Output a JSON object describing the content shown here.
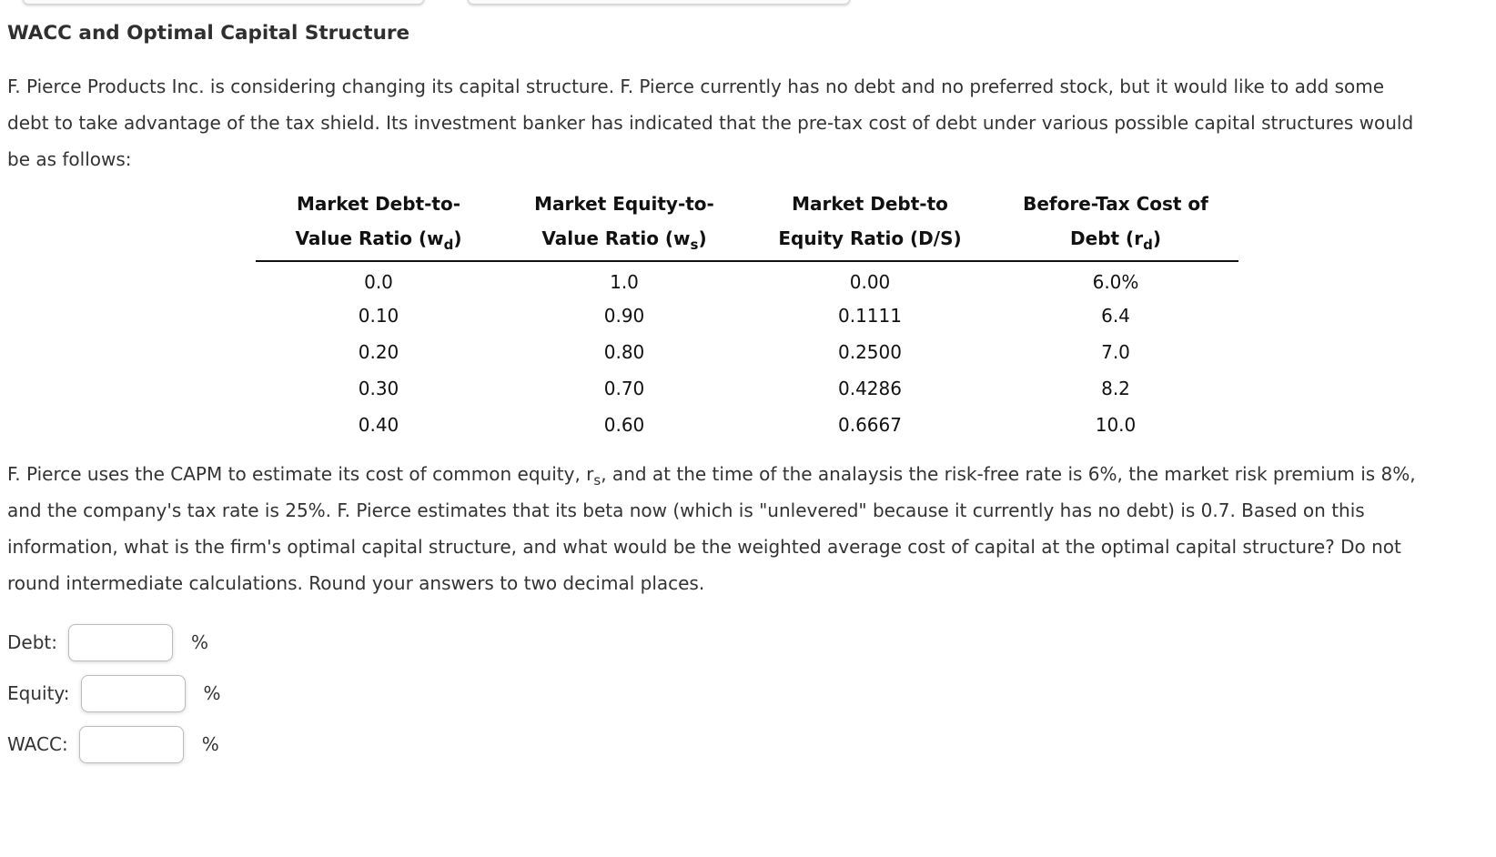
{
  "title": "WACC and Optimal Capital Structure",
  "intro_paragraph": "F. Pierce Products Inc. is considering changing its capital structure. F. Pierce currently has no debt and no preferred stock, but it would like to add some debt to take advantage of the tax shield. Its investment banker has indicated that the pre-tax cost of debt under various possible capital structures would be as follows:",
  "table": {
    "headers": [
      {
        "line1": "Market Debt-to-",
        "line2_pre": "Value Ratio (w",
        "line2_sub": "d",
        "line2_post": ")"
      },
      {
        "line1": "Market Equity-to-",
        "line2_pre": "Value Ratio (w",
        "line2_sub": "s",
        "line2_post": ")"
      },
      {
        "line1": "Market Debt-to",
        "line2_pre": "Equity Ratio (D/S)",
        "line2_sub": "",
        "line2_post": ""
      },
      {
        "line1": "Before-Tax Cost of",
        "line2_pre": "Debt (r",
        "line2_sub": "d",
        "line2_post": ")"
      }
    ],
    "rows": [
      [
        "0.0",
        "1.0",
        "0.00",
        "6.0%"
      ],
      [
        "0.10",
        "0.90",
        "0.1111",
        "6.4"
      ],
      [
        "0.20",
        "0.80",
        "0.2500",
        "7.0"
      ],
      [
        "0.30",
        "0.70",
        "0.4286",
        "8.2"
      ],
      [
        "0.40",
        "0.60",
        "0.6667",
        "10.0"
      ]
    ]
  },
  "question_paragraph": {
    "part1": "F. Pierce uses the CAPM to estimate its cost of common equity, r",
    "sub": "s",
    "part2": ", and at the time of the analaysis the risk-free rate is 6%, the market risk premium is 8%, and the company's tax rate is 25%. F. Pierce estimates that its beta now (which is \"unlevered\" because it currently has no debt) is 0.7. Based on this information, what is the firm's optimal capital structure, and what would be the weighted average cost of capital at the optimal capital structure? Do not round intermediate calculations. Round your answers to two decimal places."
  },
  "answers": [
    {
      "label": "Debt:",
      "value": "",
      "suffix": "%"
    },
    {
      "label": "Equity:",
      "value": "",
      "suffix": "%"
    },
    {
      "label": "WACC:",
      "value": "",
      "suffix": "%"
    }
  ]
}
